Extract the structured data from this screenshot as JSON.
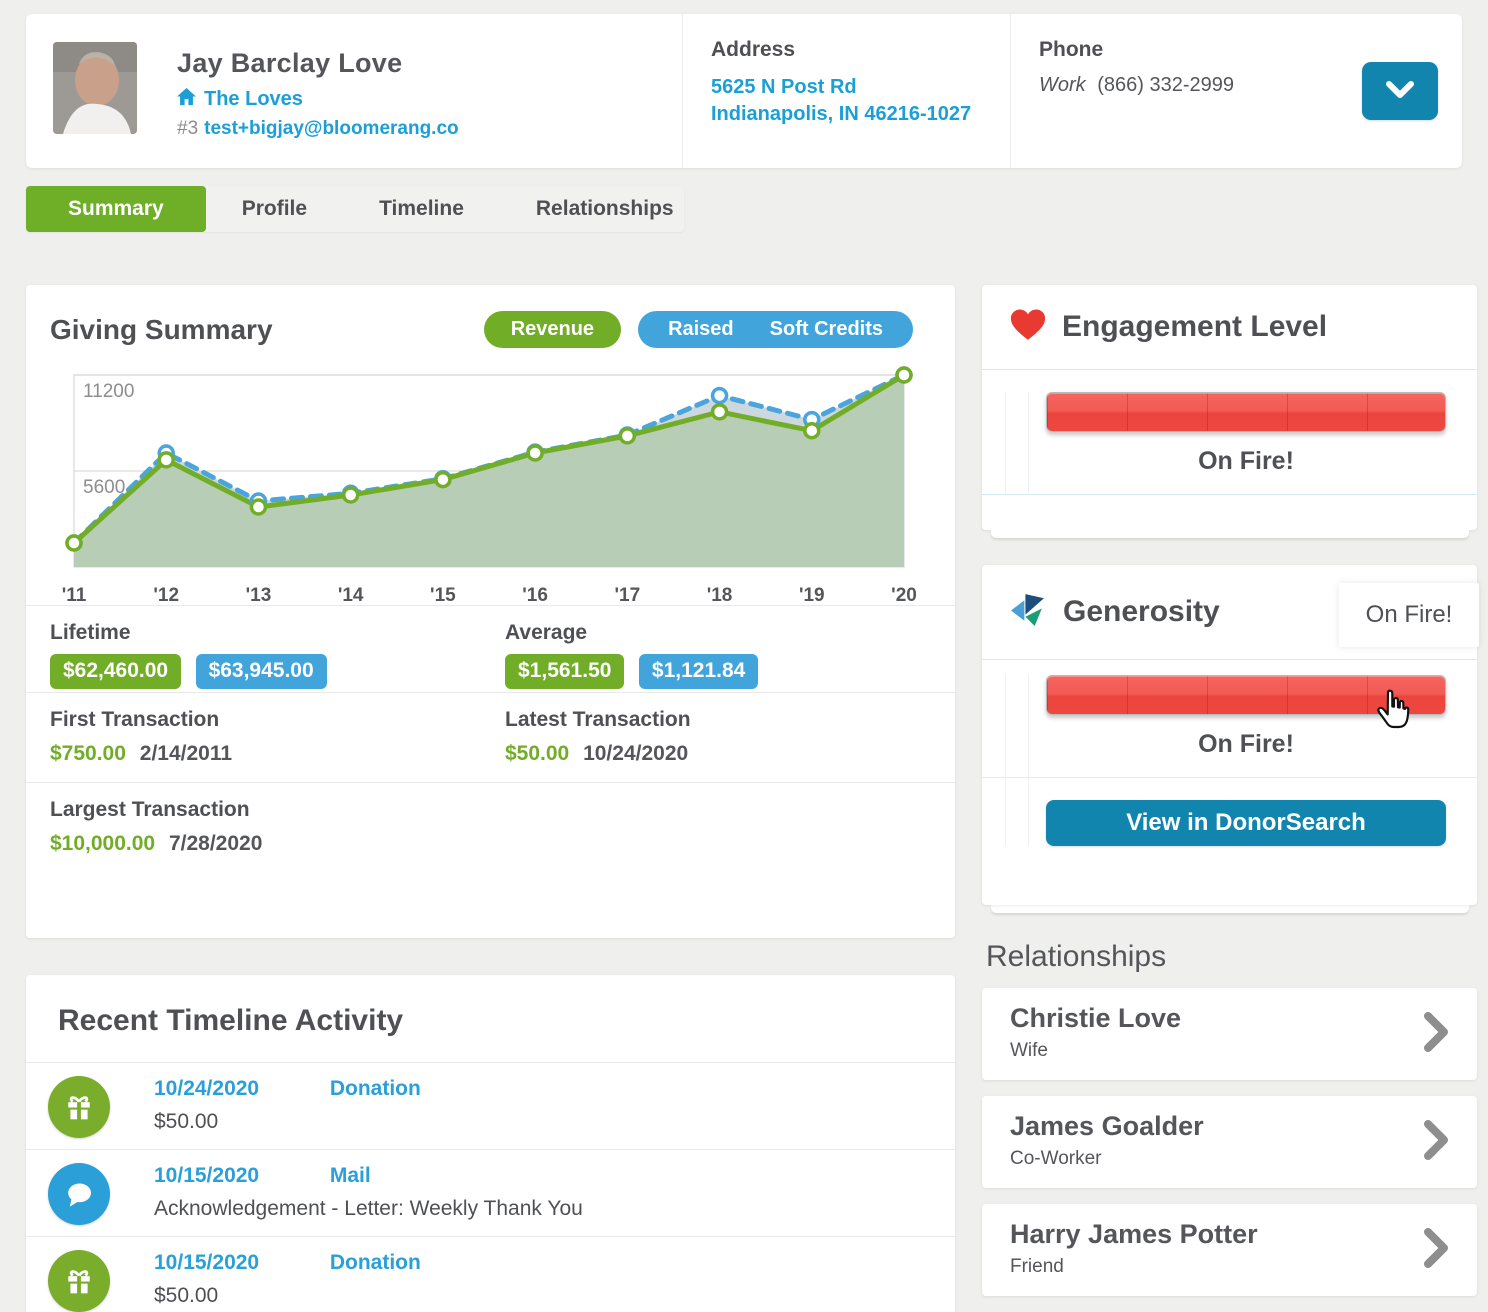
{
  "header": {
    "name": "Jay Barclay Love",
    "household": "The Loves",
    "account_number": "#3",
    "email": "test+bigjay@bloomerang.co",
    "address_label": "Address",
    "address_line1": "5625 N Post Rd",
    "address_line2": "Indianapolis, IN 46216-1027",
    "phone_label": "Phone",
    "phone_type": "Work",
    "phone_number": "(866) 332-2999"
  },
  "tabs": [
    {
      "label": "Summary",
      "active": true
    },
    {
      "label": "Profile",
      "active": false
    },
    {
      "label": "Timeline",
      "active": false
    },
    {
      "label": "Relationships",
      "active": false
    }
  ],
  "giving_summary": {
    "title": "Giving Summary",
    "buttons": {
      "revenue": "Revenue",
      "raised": "Raised",
      "soft_credits": "Soft Credits"
    },
    "lifetime": {
      "label": "Lifetime",
      "revenue": "$62,460.00",
      "raised": "$63,945.00"
    },
    "average": {
      "label": "Average",
      "revenue": "$1,561.50",
      "raised": "$1,121.84"
    },
    "first_transaction": {
      "label": "First Transaction",
      "amount": "$750.00",
      "date": "2/14/2011"
    },
    "latest_transaction": {
      "label": "Latest Transaction",
      "amount": "$50.00",
      "date": "10/24/2020"
    },
    "largest_transaction": {
      "label": "Largest Transaction",
      "amount": "$10,000.00",
      "date": "7/28/2020"
    }
  },
  "chart_data": {
    "type": "line",
    "x": [
      "'11",
      "'12",
      "'13",
      "'14",
      "'15",
      "'16",
      "'17",
      "'18",
      "'19",
      "'20"
    ],
    "series": [
      {
        "name": "Revenue",
        "color": "#72ad28",
        "style": "solid",
        "values": [
          1400,
          6250,
          3500,
          4200,
          5100,
          6650,
          7650,
          9050,
          7950,
          11200
        ]
      },
      {
        "name": "Raised / Soft Credits",
        "color": "#4aa5dc",
        "style": "dashed",
        "values": [
          1400,
          6650,
          3850,
          4300,
          5150,
          6700,
          7700,
          10000,
          8600,
          11200
        ]
      }
    ],
    "ylim": [
      0,
      11200
    ],
    "yticks": [
      5600,
      11200
    ],
    "grid": true,
    "legend_position": "none",
    "area_fill_green": "#b7cdb5",
    "area_fill_blue": "#cdd8de"
  },
  "timeline": {
    "title": "Recent Timeline Activity",
    "items": [
      {
        "icon": "gift-icon",
        "date": "10/24/2020",
        "type": "Donation",
        "detail": "$50.00"
      },
      {
        "icon": "chat-icon",
        "date": "10/15/2020",
        "type": "Mail",
        "detail": "Acknowledgement - Letter: Weekly Thank You"
      },
      {
        "icon": "gift-icon",
        "date": "10/15/2020",
        "type": "Donation",
        "detail": "$50.00"
      }
    ]
  },
  "engagement": {
    "title": "Engagement Level",
    "level_label": "On Fire!",
    "segments": 5,
    "fill_pct": 100
  },
  "generosity": {
    "title": "Generosity",
    "level_label": "On Fire!",
    "tooltip": "On Fire!",
    "button": "View in DonorSearch",
    "segments": 5,
    "fill_pct": 100
  },
  "relationships": {
    "title": "Relationships",
    "items": [
      {
        "name": "Christie Love",
        "role": "Wife"
      },
      {
        "name": "James Goalder",
        "role": "Co-Worker"
      },
      {
        "name": "Harry James Potter",
        "role": "Friend"
      }
    ]
  },
  "colors": {
    "green": "#72ad28",
    "blue": "#41a5dc",
    "teal_button": "#1285ae",
    "link": "#1b9fd6",
    "red_meter": "#ee4740",
    "heart_red": "#e93a31"
  }
}
